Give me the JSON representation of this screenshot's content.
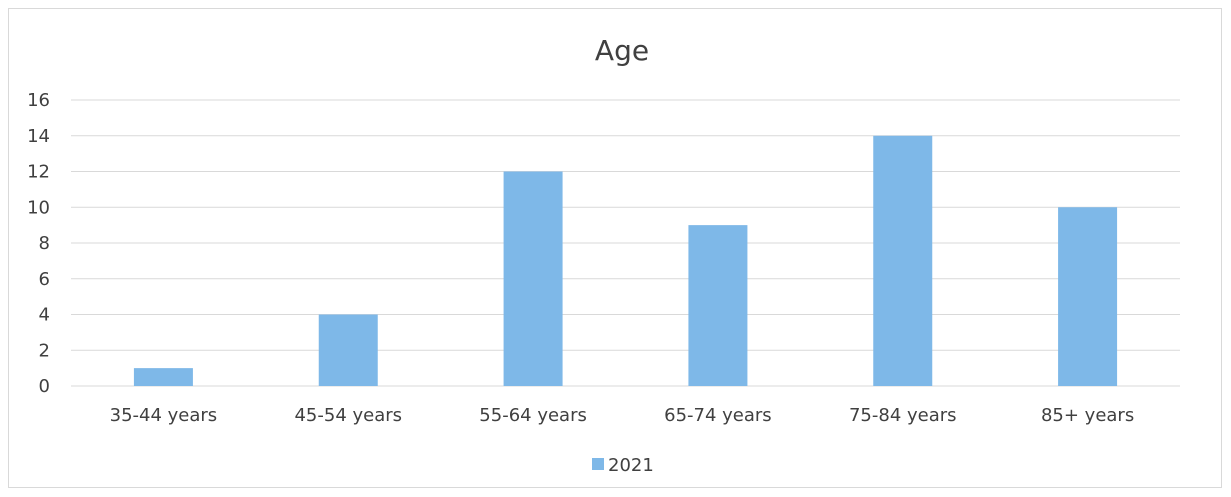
{
  "chart_data": {
    "type": "bar",
    "title": "Age",
    "categories": [
      "35-44 years",
      "45-54 years",
      "55-64 years",
      "65-74 years",
      "75-84 years",
      "85+ years"
    ],
    "series": [
      {
        "name": "2021",
        "values": [
          1,
          4,
          12,
          9,
          14,
          10
        ],
        "color": "#7eb8e8"
      }
    ],
    "ylim": [
      0,
      16
    ],
    "yticks": [
      0,
      2,
      4,
      6,
      8,
      10,
      12,
      14,
      16
    ],
    "grid": true,
    "legend_position": "bottom"
  }
}
